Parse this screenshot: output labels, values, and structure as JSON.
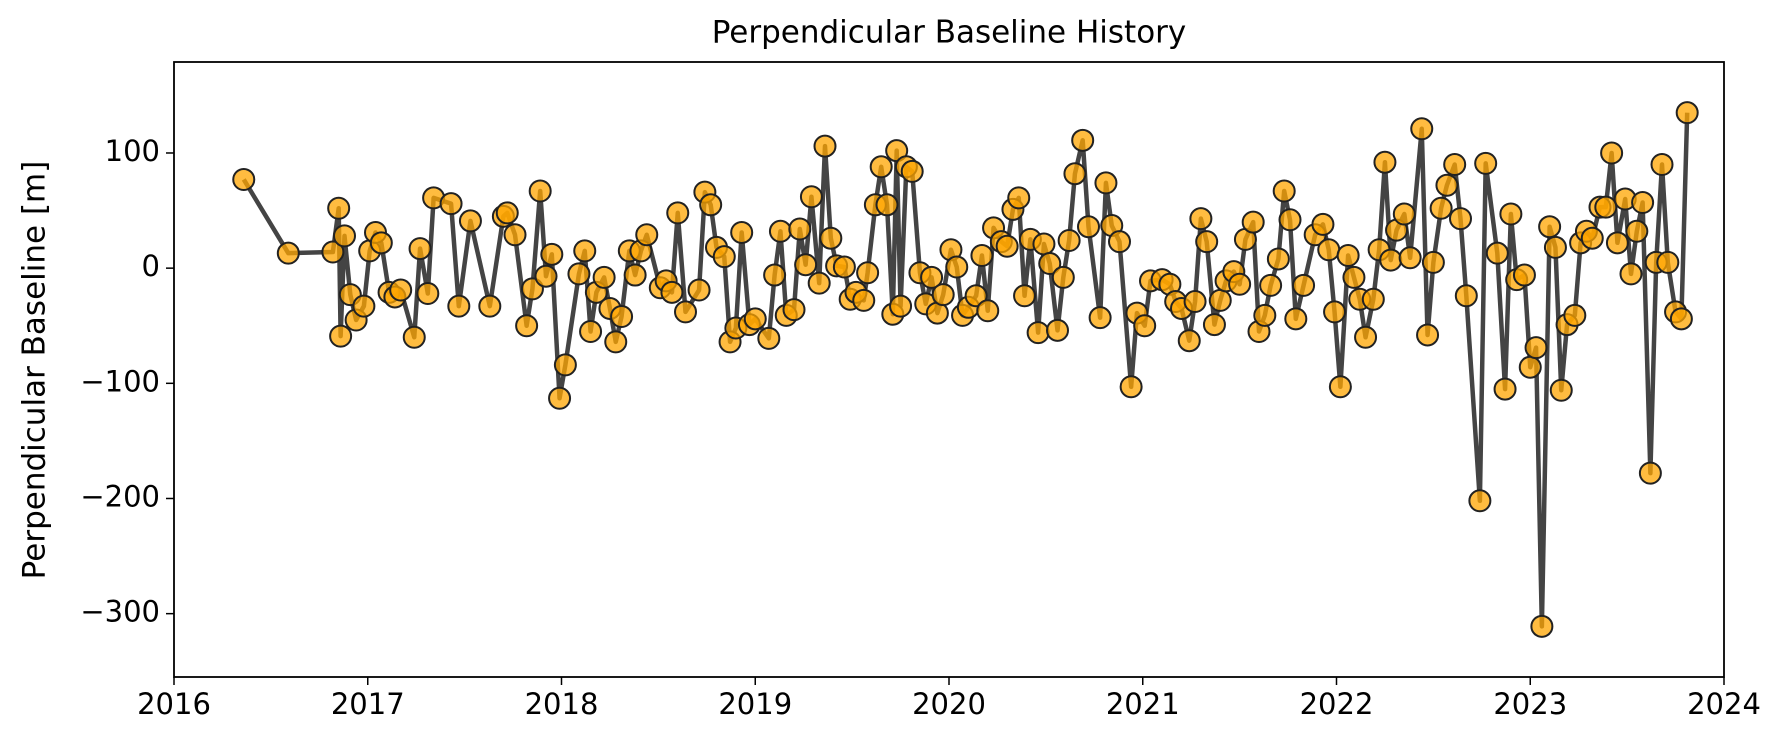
{
  "chart_data": {
    "type": "line",
    "title": "Perpendicular Baseline History",
    "ylabel": "Perpendicular Baseline [m]",
    "line_color": "#444444",
    "marker_color": "#ffa500",
    "marker_edge_color": "#222222",
    "grid": false,
    "xlim": [
      2016,
      2024
    ],
    "xticks": [
      2016,
      2017,
      2018,
      2019,
      2020,
      2021,
      2022,
      2023,
      2024
    ],
    "ylim": [
      -355,
      179
    ],
    "yticks": [
      {
        "value": -300,
        "label": "−300"
      },
      {
        "value": -200,
        "label": "−200"
      },
      {
        "value": -100,
        "label": "−100"
      },
      0,
      100
    ],
    "x": [
      2016.36,
      2016.59,
      2016.82,
      2016.85,
      2016.86,
      2016.88,
      2016.91,
      2016.94,
      2016.98,
      2017.01,
      2017.04,
      2017.07,
      2017.11,
      2017.14,
      2017.17,
      2017.24,
      2017.27,
      2017.31,
      2017.34,
      2017.43,
      2017.47,
      2017.53,
      2017.63,
      2017.7,
      2017.72,
      2017.76,
      2017.82,
      2017.85,
      2017.89,
      2017.92,
      2017.95,
      2017.99,
      2018.02,
      2018.09,
      2018.12,
      2018.15,
      2018.18,
      2018.22,
      2018.25,
      2018.28,
      2018.31,
      2018.35,
      2018.38,
      2018.41,
      2018.44,
      2018.51,
      2018.54,
      2018.57,
      2018.6,
      2018.64,
      2018.71,
      2018.74,
      2018.77,
      2018.8,
      2018.84,
      2018.87,
      2018.9,
      2018.93,
      2018.97,
      2019.0,
      2019.07,
      2019.1,
      2019.13,
      2019.16,
      2019.2,
      2019.23,
      2019.26,
      2019.29,
      2019.33,
      2019.36,
      2019.39,
      2019.42,
      2019.46,
      2019.49,
      2019.52,
      2019.56,
      2019.58,
      2019.62,
      2019.65,
      2019.68,
      2019.71,
      2019.73,
      2019.75,
      2019.78,
      2019.81,
      2019.85,
      2019.88,
      2019.91,
      2019.94,
      2019.97,
      2020.01,
      2020.04,
      2020.07,
      2020.1,
      2020.14,
      2020.17,
      2020.2,
      2020.23,
      2020.27,
      2020.3,
      2020.33,
      2020.36,
      2020.39,
      2020.42,
      2020.46,
      2020.49,
      2020.52,
      2020.56,
      2020.59,
      2020.62,
      2020.65,
      2020.69,
      2020.72,
      2020.78,
      2020.81,
      2020.84,
      2020.88,
      2020.94,
      2020.97,
      2021.01,
      2021.04,
      2021.1,
      2021.14,
      2021.17,
      2021.2,
      2021.24,
      2021.27,
      2021.3,
      2021.33,
      2021.37,
      2021.4,
      2021.43,
      2021.47,
      2021.5,
      2021.53,
      2021.57,
      2021.6,
      2021.63,
      2021.66,
      2021.7,
      2021.73,
      2021.76,
      2021.79,
      2021.83,
      2021.89,
      2021.93,
      2021.96,
      2021.99,
      2022.02,
      2022.06,
      2022.09,
      2022.12,
      2022.15,
      2022.19,
      2022.22,
      2022.25,
      2022.28,
      2022.31,
      2022.35,
      2022.38,
      2022.44,
      2022.47,
      2022.5,
      2022.54,
      2022.57,
      2022.61,
      2022.64,
      2022.67,
      2022.74,
      2022.77,
      2022.83,
      2022.87,
      2022.9,
      2022.93,
      2022.97,
      2023.0,
      2023.03,
      2023.06,
      2023.1,
      2023.13,
      2023.16,
      2023.19,
      2023.23,
      2023.26,
      2023.29,
      2023.32,
      2023.36,
      2023.39,
      2023.42,
      2023.45,
      2023.49,
      2023.52,
      2023.55,
      2023.58,
      2023.62,
      2023.65,
      2023.68,
      2023.71,
      2023.75,
      2023.78,
      2023.81
    ],
    "values": [
      77,
      13,
      14,
      52,
      -59,
      28,
      -23,
      -45,
      -33,
      15,
      31,
      22,
      -21,
      -25,
      -19,
      -60,
      17,
      -22,
      61,
      56,
      -33,
      41,
      -33,
      45,
      48,
      29,
      -50,
      -18,
      67,
      -7,
      12,
      -113,
      -84,
      -5,
      15,
      -55,
      -21,
      -8,
      -35,
      -64,
      -42,
      15,
      -6,
      15,
      29,
      -17,
      -11,
      -21,
      48,
      -38,
      -19,
      66,
      55,
      18,
      10,
      -64,
      -52,
      31,
      -49,
      -44,
      -61,
      -6,
      32,
      -41,
      -36,
      34,
      3,
      62,
      -13,
      106,
      26,
      2,
      1,
      -27,
      -21,
      -28,
      -4,
      55,
      88,
      55,
      -40,
      102,
      -33,
      88,
      84,
      -4,
      -31,
      -8,
      -39,
      -23,
      16,
      1,
      -41,
      -34,
      -24,
      11,
      -37,
      35,
      23,
      19,
      51,
      61,
      -24,
      25,
      -56,
      21,
      4,
      -54,
      -8,
      24,
      82,
      111,
      36,
      -43,
      74,
      37,
      23,
      -103,
      -39,
      -50,
      -11,
      -10,
      -14,
      -29,
      -35,
      -63,
      -29,
      43,
      23,
      -49,
      -28,
      -11,
      -3,
      -14,
      25,
      40,
      -55,
      -41,
      -15,
      8,
      67,
      42,
      -44,
      -15,
      29,
      38,
      16,
      -38,
      -103,
      11,
      -8,
      -27,
      -60,
      -27,
      16,
      92,
      7,
      33,
      47,
      9,
      121,
      -58,
      5,
      52,
      72,
      90,
      43,
      -24,
      -202,
      91,
      13,
      -105,
      47,
      -10,
      -6,
      -86,
      -69,
      -311,
      36,
      18,
      -106,
      -49,
      -41,
      22,
      32,
      26,
      53,
      53,
      100,
      22,
      60,
      -5,
      32,
      57,
      -178,
      5,
      90,
      5,
      -38,
      -44,
      135
    ]
  }
}
